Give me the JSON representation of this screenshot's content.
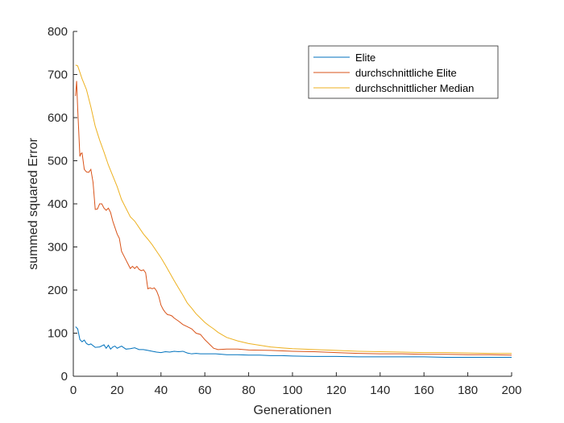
{
  "chart_data": {
    "type": "line",
    "title": "",
    "xlabel": "Generationen",
    "ylabel": "summed squared Error",
    "xlim": [
      0,
      200
    ],
    "ylim": [
      0,
      800
    ],
    "xticks": [
      0,
      20,
      40,
      60,
      80,
      100,
      120,
      140,
      160,
      180,
      200
    ],
    "yticks": [
      0,
      100,
      200,
      300,
      400,
      500,
      600,
      700,
      800
    ],
    "grid": false,
    "legend_position": "top-right",
    "series": [
      {
        "name": "Elite",
        "color": "#0072BD",
        "x": [
          1,
          2,
          3,
          4,
          5,
          6,
          7,
          8,
          10,
          12,
          14,
          15,
          16,
          17,
          18,
          19,
          20,
          22,
          24,
          26,
          28,
          30,
          32,
          34,
          36,
          38,
          40,
          42,
          44,
          46,
          48,
          50,
          52,
          54,
          56,
          58,
          60,
          65,
          70,
          75,
          80,
          85,
          90,
          95,
          100,
          110,
          120,
          130,
          140,
          150,
          160,
          170,
          180,
          190,
          200
        ],
        "y": [
          115,
          110,
          85,
          80,
          84,
          76,
          73,
          75,
          67,
          68,
          73,
          65,
          72,
          63,
          68,
          70,
          65,
          70,
          63,
          64,
          66,
          62,
          62,
          60,
          58,
          56,
          55,
          57,
          56,
          58,
          57,
          58,
          54,
          52,
          53,
          52,
          52,
          52,
          50,
          50,
          49,
          49,
          48,
          48,
          47,
          46,
          46,
          45,
          45,
          45,
          45,
          44,
          44,
          44,
          44
        ]
      },
      {
        "name": "durchschnittliche Elite",
        "color": "#D95319",
        "x": [
          1,
          1.5,
          2,
          3,
          3.5,
          4,
          5,
          6,
          7,
          8,
          9,
          10,
          11,
          12,
          13,
          14,
          15,
          16,
          17,
          18,
          19,
          20,
          21,
          22,
          23,
          24,
          25,
          26,
          27,
          28,
          29,
          30,
          31,
          32,
          33,
          34,
          35,
          36,
          37,
          38,
          39,
          40,
          41,
          42,
          43,
          44,
          45,
          46,
          48,
          50,
          52,
          54,
          56,
          58,
          60,
          62,
          64,
          66,
          70,
          75,
          80,
          90,
          100,
          110,
          120,
          130,
          140,
          150,
          160,
          170,
          180,
          190,
          200
        ],
        "y": [
          650,
          685,
          620,
          510,
          517,
          518,
          480,
          474,
          473,
          480,
          450,
          387,
          388,
          400,
          400,
          390,
          385,
          390,
          380,
          360,
          345,
          330,
          320,
          290,
          280,
          270,
          260,
          250,
          255,
          250,
          255,
          248,
          245,
          247,
          240,
          203,
          205,
          203,
          205,
          198,
          185,
          165,
          155,
          148,
          143,
          142,
          140,
          135,
          128,
          120,
          115,
          110,
          100,
          97,
          85,
          75,
          65,
          62,
          63,
          63,
          61,
          60,
          58,
          57,
          55,
          53,
          52,
          52,
          51,
          51,
          50,
          50,
          49
        ]
      },
      {
        "name": "durchschnittlicher Median",
        "color": "#EDB120",
        "x": [
          1,
          2,
          3,
          4,
          6,
          8,
          10,
          12,
          14,
          16,
          18,
          20,
          22,
          24,
          26,
          28,
          30,
          32,
          34,
          36,
          38,
          40,
          42,
          44,
          46,
          48,
          50,
          52,
          54,
          56,
          58,
          60,
          62,
          64,
          66,
          68,
          70,
          75,
          80,
          85,
          90,
          95,
          100,
          110,
          120,
          130,
          140,
          150,
          160,
          170,
          180,
          190,
          200
        ],
        "y": [
          722,
          720,
          705,
          690,
          665,
          625,
          580,
          548,
          520,
          490,
          465,
          440,
          410,
          390,
          370,
          360,
          345,
          330,
          318,
          305,
          290,
          275,
          258,
          240,
          222,
          205,
          188,
          170,
          158,
          145,
          135,
          125,
          117,
          110,
          102,
          96,
          90,
          82,
          76,
          72,
          68,
          66,
          64,
          62,
          60,
          58,
          57,
          56,
          55,
          55,
          54,
          53,
          53
        ]
      }
    ]
  }
}
